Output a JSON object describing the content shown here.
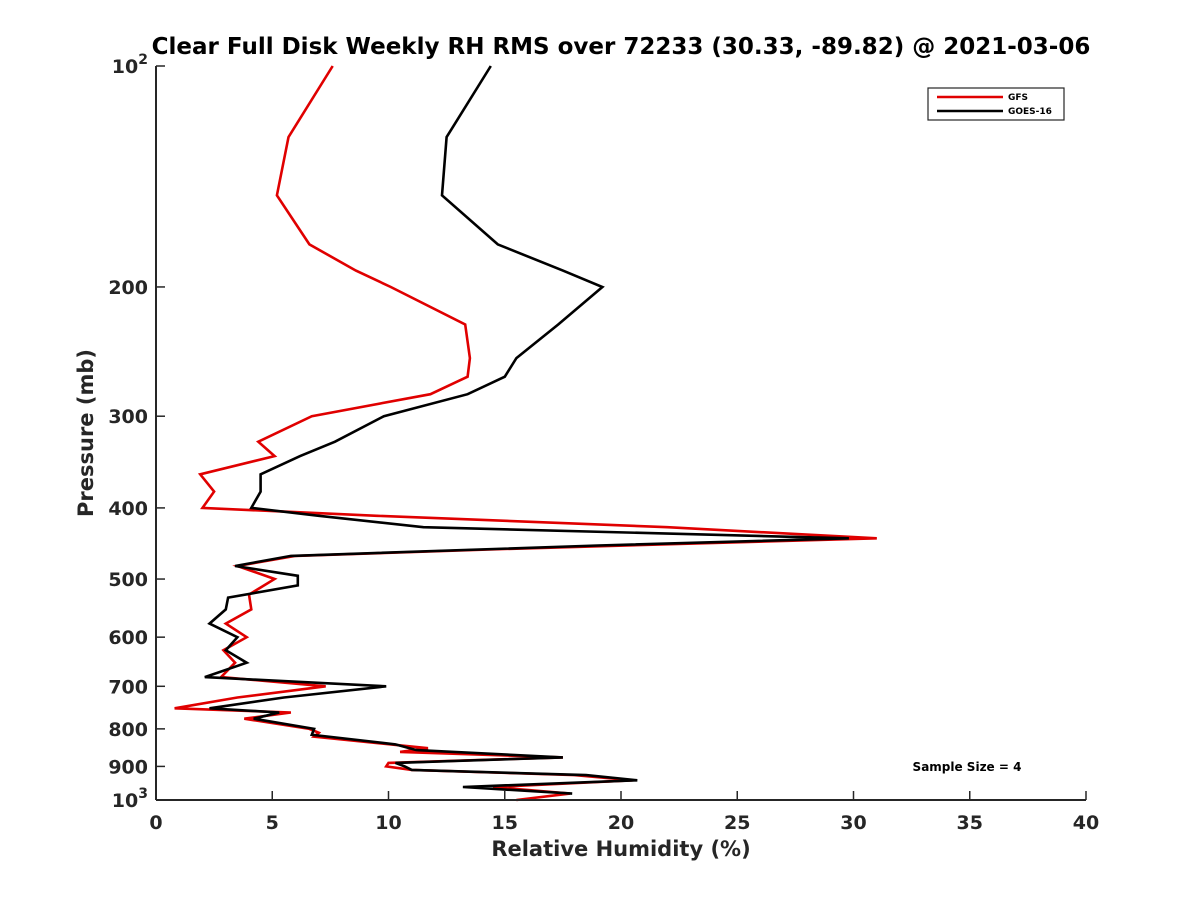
{
  "chart_data": {
    "type": "line",
    "title": "Clear Full Disk Weekly RH RMS over 72233 (30.33, -89.82) @ 2021-03-06",
    "xlabel": "Relative Humidity (%)",
    "ylabel": "Pressure (mb)",
    "xlim": [
      0,
      40
    ],
    "ylim": [
      100,
      1000
    ],
    "yscale": "log",
    "y_reversed": true,
    "grid": false,
    "legend_position": "top-right",
    "x_ticks": [
      0,
      5,
      10,
      15,
      20,
      25,
      30,
      35,
      40
    ],
    "x_tick_labels": [
      "0",
      "5",
      "10",
      "15",
      "20",
      "25",
      "30",
      "35",
      "40"
    ],
    "y_ticks": [
      100,
      200,
      300,
      400,
      500,
      600,
      700,
      800,
      900,
      1000
    ],
    "y_tick_labels": [
      {
        "base": "10",
        "exp": "2"
      },
      {
        "base": "200",
        "exp": ""
      },
      {
        "base": "300",
        "exp": ""
      },
      {
        "base": "400",
        "exp": ""
      },
      {
        "base": "500",
        "exp": ""
      },
      {
        "base": "600",
        "exp": ""
      },
      {
        "base": "700",
        "exp": ""
      },
      {
        "base": "800",
        "exp": ""
      },
      {
        "base": "900",
        "exp": ""
      },
      {
        "base": "10",
        "exp": "3"
      }
    ],
    "annotation": "Sample Size = 4",
    "series": [
      {
        "name": "GFS",
        "color": "#e00000",
        "points": [
          [
            7.6,
            100
          ],
          [
            5.7,
            125
          ],
          [
            5.2,
            150
          ],
          [
            6.6,
            175
          ],
          [
            8.6,
            190
          ],
          [
            10.1,
            200
          ],
          [
            13.3,
            225
          ],
          [
            13.5,
            250
          ],
          [
            13.4,
            265
          ],
          [
            11.8,
            280
          ],
          [
            6.7,
            300
          ],
          [
            4.4,
            325
          ],
          [
            5.1,
            340
          ],
          [
            1.9,
            360
          ],
          [
            2.5,
            380
          ],
          [
            2.0,
            400
          ],
          [
            9.5,
            410
          ],
          [
            22.0,
            425
          ],
          [
            31.0,
            440
          ],
          [
            15.0,
            455
          ],
          [
            6.0,
            465
          ],
          [
            3.5,
            480
          ],
          [
            5.1,
            500
          ],
          [
            4.0,
            525
          ],
          [
            4.1,
            550
          ],
          [
            3.0,
            575
          ],
          [
            3.9,
            600
          ],
          [
            2.9,
            625
          ],
          [
            3.4,
            650
          ],
          [
            2.8,
            680
          ],
          [
            7.3,
            700
          ],
          [
            3.5,
            725
          ],
          [
            0.8,
            750
          ],
          [
            5.8,
            760
          ],
          [
            3.8,
            775
          ],
          [
            6.6,
            800
          ],
          [
            7.0,
            810
          ],
          [
            6.8,
            820
          ],
          [
            11.7,
            850
          ],
          [
            10.5,
            860
          ],
          [
            17.5,
            875
          ],
          [
            10.0,
            890
          ],
          [
            9.9,
            900
          ],
          [
            11.0,
            910
          ],
          [
            18.0,
            925
          ],
          [
            20.5,
            940
          ],
          [
            14.5,
            960
          ],
          [
            17.8,
            980
          ],
          [
            15.5,
            1000
          ]
        ]
      },
      {
        "name": "GOES-16",
        "color": "#000000",
        "points": [
          [
            14.4,
            100
          ],
          [
            12.5,
            125
          ],
          [
            12.3,
            150
          ],
          [
            14.7,
            175
          ],
          [
            17.5,
            190
          ],
          [
            19.2,
            200
          ],
          [
            17.3,
            225
          ],
          [
            15.5,
            250
          ],
          [
            15.0,
            265
          ],
          [
            13.4,
            280
          ],
          [
            9.8,
            300
          ],
          [
            7.7,
            325
          ],
          [
            6.2,
            340
          ],
          [
            4.5,
            360
          ],
          [
            4.5,
            380
          ],
          [
            4.1,
            400
          ],
          [
            7.0,
            410
          ],
          [
            11.5,
            425
          ],
          [
            29.8,
            440
          ],
          [
            19.0,
            450
          ],
          [
            5.8,
            465
          ],
          [
            3.4,
            480
          ],
          [
            6.1,
            495
          ],
          [
            6.1,
            510
          ],
          [
            3.1,
            530
          ],
          [
            3.0,
            550
          ],
          [
            2.3,
            575
          ],
          [
            3.5,
            600
          ],
          [
            3.0,
            625
          ],
          [
            3.9,
            650
          ],
          [
            2.1,
            680
          ],
          [
            9.9,
            700
          ],
          [
            5.5,
            725
          ],
          [
            2.3,
            750
          ],
          [
            5.3,
            760
          ],
          [
            4.2,
            775
          ],
          [
            6.8,
            800
          ],
          [
            6.7,
            815
          ],
          [
            10.3,
            840
          ],
          [
            11.2,
            855
          ],
          [
            17.5,
            875
          ],
          [
            10.3,
            890
          ],
          [
            10.7,
            900
          ],
          [
            11.0,
            910
          ],
          [
            18.5,
            925
          ],
          [
            20.7,
            940
          ],
          [
            13.2,
            960
          ],
          [
            17.9,
            980
          ]
        ]
      }
    ]
  }
}
